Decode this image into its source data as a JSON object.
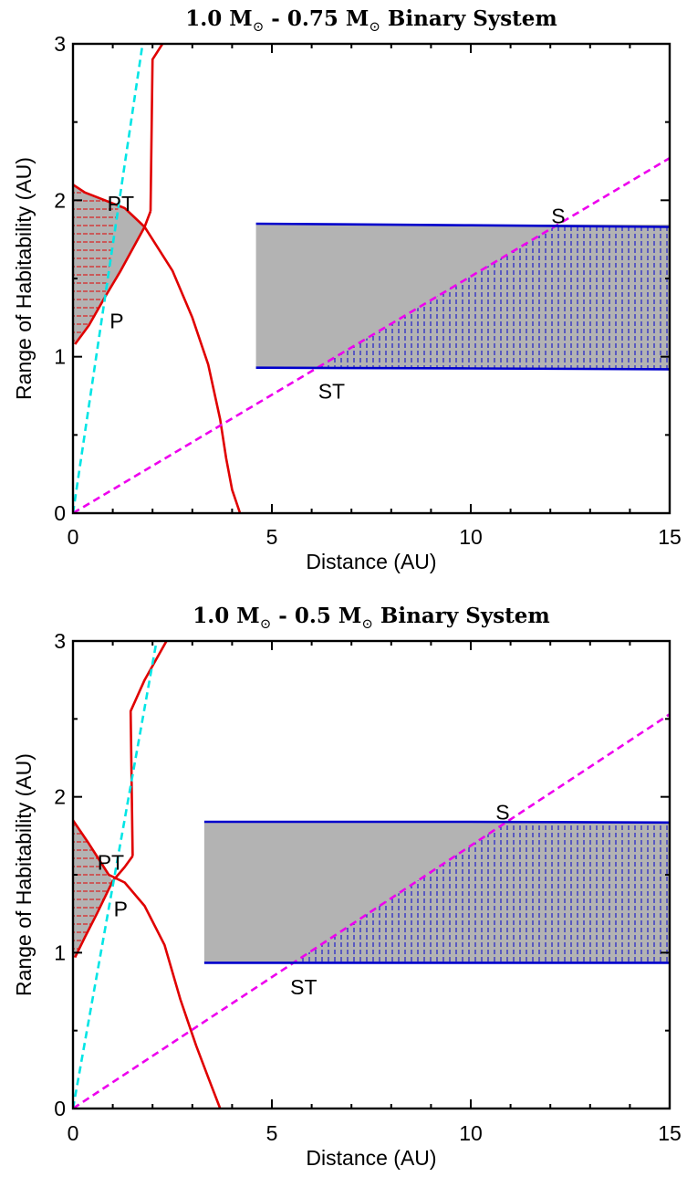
{
  "chart_data": [
    {
      "type": "line",
      "title_main": "1.0 M",
      "title_sub": "⊙",
      "title_mid": " - 0.75 M",
      "title_end": " Binary System",
      "xlabel": "Distance (AU)",
      "ylabel": "Range of Habitability (AU)",
      "xlim": [
        0,
        15
      ],
      "ylim": [
        0,
        3
      ],
      "xticks": [
        "0",
        "5",
        "10",
        "15"
      ],
      "yticks": [
        "0",
        "1",
        "2",
        "3"
      ],
      "colors": {
        "red": "#e00000",
        "cyan": "#00e5e5",
        "magenta": "#ee00ee",
        "blue": "#0000cc",
        "gray": "#b3b3b3",
        "hatch_red": "#e00000",
        "hatch_blue": "#0000cc"
      },
      "series": [
        {
          "kind": "red-steep",
          "points": [
            [
              1.95,
              1.93
            ],
            [
              2.0,
              2.9
            ],
            [
              2.25,
              3.0
            ]
          ]
        },
        {
          "kind": "red-lower",
          "points": [
            [
              0.05,
              1.08
            ],
            [
              0.4,
              1.2
            ],
            [
              0.8,
              1.38
            ],
            [
              1.2,
              1.55
            ],
            [
              1.8,
              1.83
            ],
            [
              1.95,
              1.93
            ]
          ]
        },
        {
          "kind": "red-upper",
          "points": [
            [
              0.0,
              2.1
            ],
            [
              0.3,
              2.05
            ],
            [
              0.8,
              2.0
            ],
            [
              1.3,
              1.95
            ],
            [
              1.8,
              1.83
            ],
            [
              2.5,
              1.55
            ],
            [
              3.0,
              1.25
            ],
            [
              3.4,
              0.95
            ],
            [
              3.7,
              0.6
            ],
            [
              3.85,
              0.35
            ],
            [
              4.0,
              0.15
            ],
            [
              4.2,
              0.0
            ]
          ]
        },
        {
          "kind": "cyan-line",
          "points": [
            [
              0.0,
              0.0
            ],
            [
              1.75,
              3.0
            ]
          ]
        },
        {
          "kind": "magenta-line",
          "points": [
            [
              0.0,
              0.0
            ],
            [
              15.0,
              2.27
            ]
          ]
        },
        {
          "kind": "blue-top",
          "points": [
            [
              4.6,
              1.85
            ],
            [
              10.0,
              1.84
            ],
            [
              15.0,
              1.83
            ]
          ]
        },
        {
          "kind": "blue-bottom",
          "points": [
            [
              4.6,
              0.93
            ],
            [
              10.0,
              0.925
            ],
            [
              15.0,
              0.92
            ]
          ]
        }
      ],
      "regions": {
        "planetary_poly": [
          [
            0.0,
            2.1
          ],
          [
            0.3,
            2.05
          ],
          [
            0.8,
            2.0
          ],
          [
            1.3,
            1.95
          ],
          [
            1.8,
            1.83
          ],
          [
            1.2,
            1.55
          ],
          [
            0.8,
            1.38
          ],
          [
            0.4,
            1.2
          ],
          [
            0.05,
            1.08
          ],
          [
            0.0,
            1.08
          ]
        ],
        "stype_rect": {
          "x0": 4.6,
          "x1": 15.0,
          "y0": 0.925,
          "y1": 1.845
        },
        "cyan_slope": 1.714,
        "magenta_slope": 0.1513
      },
      "annotations": [
        {
          "text": "PT",
          "x": 1.2,
          "y": 1.98
        },
        {
          "text": "P",
          "x": 1.1,
          "y": 1.23
        },
        {
          "text": "S",
          "x": 12.2,
          "y": 1.9
        },
        {
          "text": "ST",
          "x": 6.5,
          "y": 0.78
        }
      ]
    },
    {
      "type": "line",
      "title_main": "1.0 M",
      "title_sub": "⊙",
      "title_mid": " - 0.5 M",
      "title_end": " Binary System",
      "xlabel": "Distance (AU)",
      "ylabel": "Range of Habitability (AU)",
      "xlim": [
        0,
        15
      ],
      "ylim": [
        0,
        3
      ],
      "xticks": [
        "0",
        "5",
        "10",
        "15"
      ],
      "yticks": [
        "0",
        "1",
        "2",
        "3"
      ],
      "colors": {
        "red": "#e00000",
        "cyan": "#00e5e5",
        "magenta": "#ee00ee",
        "blue": "#0000cc",
        "gray": "#b3b3b3",
        "hatch_red": "#e00000",
        "hatch_blue": "#0000cc"
      },
      "series": [
        {
          "kind": "red-steep",
          "points": [
            [
              1.5,
              1.62
            ],
            [
              1.45,
              2.55
            ],
            [
              1.8,
              2.75
            ],
            [
              2.35,
              3.0
            ]
          ]
        },
        {
          "kind": "red-lower",
          "points": [
            [
              0.05,
              0.97
            ],
            [
              0.3,
              1.1
            ],
            [
              0.6,
              1.25
            ],
            [
              1.0,
              1.46
            ],
            [
              1.3,
              1.55
            ],
            [
              1.5,
              1.62
            ]
          ]
        },
        {
          "kind": "red-upper",
          "points": [
            [
              0.0,
              1.85
            ],
            [
              0.4,
              1.7
            ],
            [
              0.9,
              1.5
            ],
            [
              1.3,
              1.45
            ],
            [
              1.8,
              1.3
            ],
            [
              2.3,
              1.05
            ],
            [
              2.7,
              0.7
            ],
            [
              2.9,
              0.55
            ],
            [
              3.1,
              0.4
            ],
            [
              3.4,
              0.2
            ],
            [
              3.7,
              0.0
            ]
          ]
        },
        {
          "kind": "cyan-line",
          "points": [
            [
              0.0,
              0.0
            ],
            [
              2.1,
              3.0
            ]
          ]
        },
        {
          "kind": "magenta-line",
          "points": [
            [
              0.0,
              0.0
            ],
            [
              15.0,
              2.53
            ]
          ]
        },
        {
          "kind": "blue-top",
          "points": [
            [
              3.3,
              1.84
            ],
            [
              10.0,
              1.84
            ],
            [
              15.0,
              1.835
            ]
          ]
        },
        {
          "kind": "blue-bottom",
          "points": [
            [
              3.3,
              0.935
            ],
            [
              10.0,
              0.935
            ],
            [
              15.0,
              0.935
            ]
          ]
        }
      ],
      "regions": {
        "planetary_poly": [
          [
            0.0,
            1.85
          ],
          [
            0.4,
            1.7
          ],
          [
            0.9,
            1.5
          ],
          [
            1.0,
            1.46
          ],
          [
            0.6,
            1.25
          ],
          [
            0.3,
            1.1
          ],
          [
            0.05,
            0.97
          ],
          [
            0.0,
            0.97
          ]
        ],
        "stype_rect": {
          "x0": 3.3,
          "x1": 15.0,
          "y0": 0.935,
          "y1": 1.84
        },
        "cyan_slope": 1.4286,
        "magenta_slope": 0.1687
      },
      "annotations": [
        {
          "text": "PT",
          "x": 0.95,
          "y": 1.58
        },
        {
          "text": "P",
          "x": 1.2,
          "y": 1.28
        },
        {
          "text": "S",
          "x": 10.8,
          "y": 1.9
        },
        {
          "text": "ST",
          "x": 5.8,
          "y": 0.78
        }
      ]
    }
  ]
}
